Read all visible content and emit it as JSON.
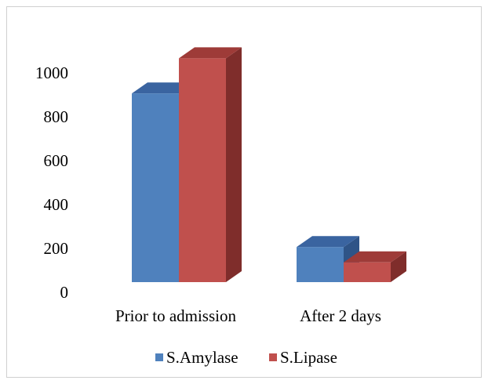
{
  "chart_data": {
    "type": "bar",
    "style": "3d-clustered-column",
    "categories": [
      "Prior to admission",
      "After 2 days"
    ],
    "series": [
      {
        "name": "S.Amylase",
        "values": [
          860,
          160
        ],
        "color": "#4f81bd",
        "top_color": "#3a64a0",
        "side_color": "#2f5487"
      },
      {
        "name": "S.Lipase",
        "values": [
          1020,
          90
        ],
        "color": "#c0504d",
        "top_color": "#9e3b38",
        "side_color": "#7f2d2b"
      }
    ],
    "y_ticks": [
      0,
      200,
      400,
      600,
      800,
      1000
    ],
    "ylim": [
      0,
      1000
    ],
    "title": "",
    "xlabel": "",
    "ylabel": "",
    "grid": false,
    "legend": "bottom"
  }
}
